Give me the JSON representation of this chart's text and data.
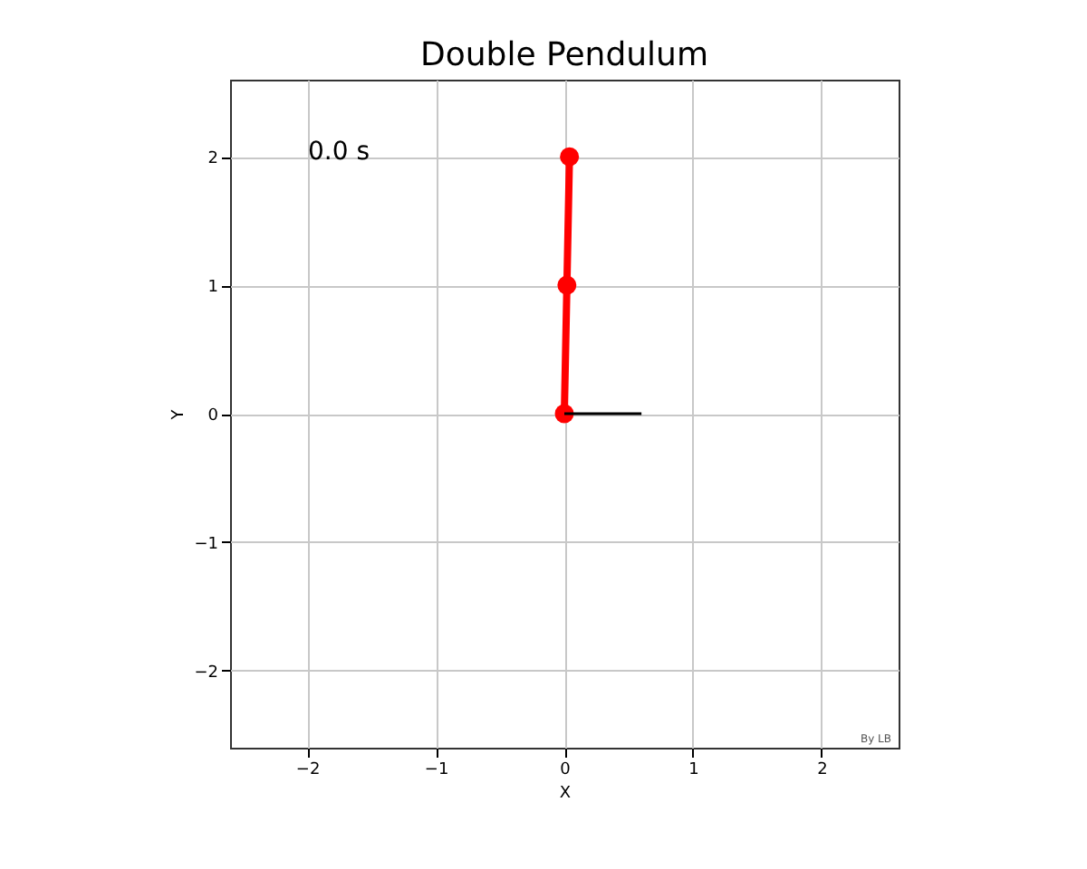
{
  "chart_data": {
    "type": "line",
    "title": "Double Pendulum",
    "xlabel": "X",
    "ylabel": "Y",
    "series": [
      {
        "color": "#ff0000",
        "x": [
          0,
          0.02,
          0.04
        ],
        "values": [
          0,
          1,
          2
        ],
        "marker": "circle"
      },
      {
        "color": "#000000",
        "x": [
          0,
          0.6
        ],
        "values": [
          0,
          0
        ],
        "marker": "none"
      }
    ],
    "xlim": [
      -2.6,
      2.6
    ],
    "ylim": [
      -2.6,
      2.6
    ],
    "xticks": [
      -2,
      -1,
      0,
      1,
      2
    ],
    "yticks": [
      -2,
      -1,
      0,
      1,
      2
    ],
    "grid": true,
    "annotations": [
      "0.0 s",
      "By LB"
    ]
  }
}
